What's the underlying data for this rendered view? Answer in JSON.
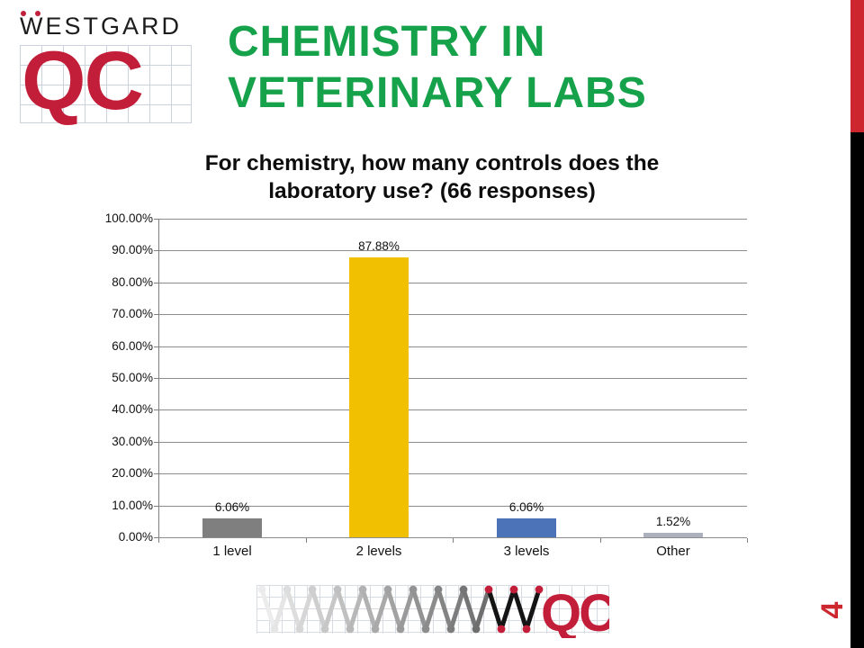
{
  "slide": {
    "page_number": "4",
    "colors": {
      "accent_red": "#ce262e",
      "sidebar_black": "#000000"
    }
  },
  "header": {
    "logo": {
      "brand_text": "WESTGARD",
      "qc_text": "QC",
      "logo_red": "#c31e39"
    },
    "title": "CHEMISTRY IN VETERINARY LABS",
    "title_color": "#16a24a"
  },
  "chart_data": {
    "type": "bar",
    "title": "For chemistry, how many controls does the laboratory use? (66 responses)",
    "title_lines": [
      "For chemistry, how many controls does the",
      "laboratory use? (66 responses)"
    ],
    "categories": [
      "1 level",
      "2 levels",
      "3 levels",
      "Other"
    ],
    "values": [
      6.06,
      87.88,
      6.06,
      1.52
    ],
    "data_labels": [
      "6.06%",
      "87.88%",
      "6.06%",
      "1.52%"
    ],
    "bar_colors": [
      "#7f7f7f",
      "#f1c000",
      "#4c72b8",
      "#acb1bd"
    ],
    "ytick_labels": [
      "0.00%",
      "10.00%",
      "20.00%",
      "30.00%",
      "40.00%",
      "50.00%",
      "60.00%",
      "70.00%",
      "80.00%",
      "90.00%",
      "100.00%"
    ],
    "ylim": [
      0,
      100
    ],
    "ytick_step": 10,
    "grid": true,
    "legend": "none",
    "xlabel": "",
    "ylabel": "",
    "gridline_color": "#8c8c8c"
  },
  "footer_logo": {
    "qc_text": "QC",
    "zigzag_gray_start_level": 236,
    "zigzag_gray_end_level": 110,
    "w_black": "#141414",
    "dot_red": "#c31e39"
  }
}
